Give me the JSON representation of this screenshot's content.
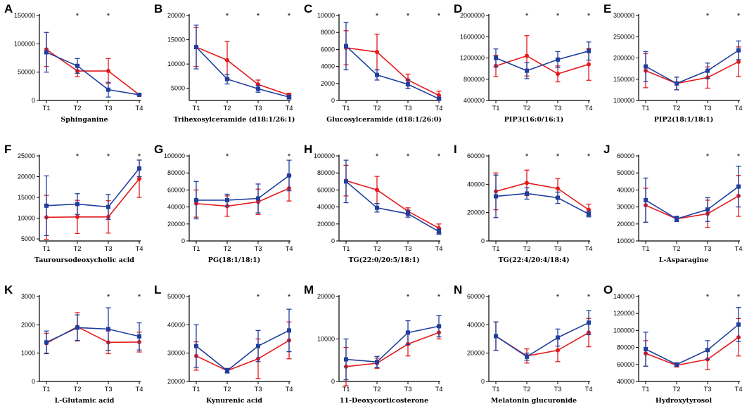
{
  "colors": {
    "red": "#e41a1c",
    "blue": "#1f3f9e"
  },
  "chart_data": [
    {
      "label": "A",
      "type": "line",
      "xlabel": "Sphinganine",
      "categories": [
        "T1",
        "T2",
        "T3",
        "T4"
      ],
      "yticks": [
        0,
        50000,
        100000,
        150000
      ],
      "ytick_labels": [
        "0",
        "50000",
        "100000",
        "150000"
      ],
      "ylim": [
        0,
        150000
      ],
      "stars": [
        false,
        true,
        true,
        false
      ],
      "series": [
        {
          "name": "red",
          "values": [
            90000,
            52000,
            52000,
            10000
          ],
          "err": [
            30000,
            10000,
            22000,
            1500
          ]
        },
        {
          "name": "blue",
          "values": [
            85000,
            61000,
            19000,
            10000
          ],
          "err": [
            35000,
            13000,
            13000,
            1500
          ]
        }
      ]
    },
    {
      "label": "B",
      "type": "line",
      "xlabel": "Trihexosylceramide (d18:1/26:1)",
      "categories": [
        "T1",
        "T2",
        "T3",
        "T4"
      ],
      "yticks": [
        5000,
        10000,
        15000,
        20000
      ],
      "ytick_labels": [
        "5000",
        "10000",
        "15000",
        "20000"
      ],
      "ylim": [
        2500,
        20000
      ],
      "stars": [
        false,
        true,
        true,
        true
      ],
      "series": [
        {
          "name": "red",
          "values": [
            13500,
            10800,
            5800,
            3600
          ],
          "err": [
            4000,
            3800,
            900,
            400
          ]
        },
        {
          "name": "blue",
          "values": [
            13500,
            6900,
            4900,
            3200
          ],
          "err": [
            4500,
            1000,
            700,
            400
          ]
        }
      ]
    },
    {
      "label": "C",
      "type": "line",
      "xlabel": "Glucosylceramide (d18:1/26:0)",
      "categories": [
        "T1",
        "T2",
        "T3",
        "T4"
      ],
      "yticks": [
        0,
        2000,
        4000,
        6000,
        8000,
        10000
      ],
      "ytick_labels": [
        "0",
        "2000",
        "4000",
        "6000",
        "8000",
        "10000"
      ],
      "ylim": [
        0,
        10000
      ],
      "stars": [
        false,
        true,
        true,
        true
      ],
      "series": [
        {
          "name": "red",
          "values": [
            6200,
            5700,
            2400,
            600
          ],
          "err": [
            2000,
            2100,
            700,
            500
          ]
        },
        {
          "name": "blue",
          "values": [
            6400,
            3000,
            1900,
            200
          ],
          "err": [
            2800,
            600,
            500,
            150
          ]
        }
      ]
    },
    {
      "label": "D",
      "type": "line",
      "xlabel": "PIP3(16:0/16:1)",
      "categories": [
        "T1",
        "T2",
        "T3",
        "T4"
      ],
      "yticks": [
        400000,
        800000,
        1200000,
        1600000,
        2000000
      ],
      "ytick_labels": [
        "400000",
        "800000",
        "1200000",
        "1600000",
        "2000000"
      ],
      "ylim": [
        400000,
        2000000
      ],
      "stars": [
        false,
        true,
        true,
        true
      ],
      "series": [
        {
          "name": "red",
          "values": [
            1050000,
            1240000,
            900000,
            1080000
          ],
          "err": [
            200000,
            380000,
            150000,
            300000
          ]
        },
        {
          "name": "blue",
          "values": [
            1200000,
            960000,
            1170000,
            1330000
          ],
          "err": [
            170000,
            150000,
            150000,
            170000
          ]
        }
      ]
    },
    {
      "label": "E",
      "type": "line",
      "xlabel": "PIP2(18:1/18:1)",
      "categories": [
        "T1",
        "T2",
        "T3",
        "T4"
      ],
      "yticks": [
        100000,
        150000,
        200000,
        250000,
        300000
      ],
      "ytick_labels": [
        "100000",
        "150000",
        "200000",
        "250000",
        "300000"
      ],
      "ylim": [
        100000,
        300000
      ],
      "stars": [
        false,
        false,
        true,
        true
      ],
      "series": [
        {
          "name": "red",
          "values": [
            170000,
            140000,
            154000,
            191000
          ],
          "err": [
            40000,
            15000,
            25000,
            35000
          ]
        },
        {
          "name": "blue",
          "values": [
            180000,
            140000,
            170000,
            218000
          ],
          "err": [
            35000,
            15000,
            18000,
            22000
          ]
        }
      ]
    },
    {
      "label": "F",
      "type": "line",
      "xlabel": "Tauroursodeoxycholic acid",
      "categories": [
        "T1",
        "T2",
        "T3",
        "T4"
      ],
      "yticks": [
        5000,
        10000,
        15000,
        20000,
        25000
      ],
      "ytick_labels": [
        "5000",
        "10000",
        "15000",
        "20000",
        "25000"
      ],
      "ylim": [
        4500,
        25000
      ],
      "stars": [
        false,
        true,
        true,
        true
      ],
      "series": [
        {
          "name": "red",
          "values": [
            10200,
            10300,
            10300,
            19500
          ],
          "err": [
            5300,
            4000,
            3900,
            4500
          ]
        },
        {
          "name": "blue",
          "values": [
            13000,
            13400,
            12700,
            22000
          ],
          "err": [
            7200,
            2500,
            3000,
            2000
          ]
        }
      ]
    },
    {
      "label": "G",
      "type": "line",
      "xlabel": "PG(18:1/18:1)",
      "categories": [
        "T1",
        "T2",
        "T3",
        "T4"
      ],
      "yticks": [
        0,
        20000,
        40000,
        60000,
        80000,
        100000
      ],
      "ytick_labels": [
        "0",
        "20000",
        "40000",
        "60000",
        "80000",
        "100000"
      ],
      "ylim": [
        0,
        100000
      ],
      "stars": [
        false,
        true,
        false,
        true
      ],
      "series": [
        {
          "name": "red",
          "values": [
            44000,
            41000,
            46000,
            62000
          ],
          "err": [
            16000,
            12000,
            15000,
            15000
          ]
        },
        {
          "name": "blue",
          "values": [
            48000,
            48000,
            50000,
            77000
          ],
          "err": [
            22000,
            7000,
            17000,
            18000
          ]
        }
      ]
    },
    {
      "label": "H",
      "type": "line",
      "xlabel": "TG(22:0/20:5/18:1)",
      "categories": [
        "T1",
        "T2",
        "T3",
        "T4"
      ],
      "yticks": [
        0,
        20000,
        40000,
        60000,
        80000,
        100000
      ],
      "ytick_labels": [
        "0",
        "20000",
        "40000",
        "60000",
        "80000",
        "100000"
      ],
      "ylim": [
        0,
        100000
      ],
      "stars": [
        false,
        true,
        true,
        true
      ],
      "series": [
        {
          "name": "red",
          "values": [
            71000,
            60000,
            35000,
            15000
          ],
          "err": [
            18000,
            16000,
            4000,
            5000
          ]
        },
        {
          "name": "blue",
          "values": [
            70000,
            39000,
            32000,
            11000
          ],
          "err": [
            25000,
            5000,
            4000,
            3000
          ]
        }
      ]
    },
    {
      "label": "I",
      "type": "line",
      "xlabel": "TG(22:4/20:4/18:4)",
      "categories": [
        "T1",
        "T2",
        "T3",
        "T4"
      ],
      "yticks": [
        0,
        20000,
        40000,
        60000
      ],
      "ytick_labels": [
        "0",
        "20000",
        "40000",
        "60000"
      ],
      "ylim": [
        0,
        60000
      ],
      "stars": [
        false,
        true,
        true,
        true
      ],
      "series": [
        {
          "name": "red",
          "values": [
            35000,
            41000,
            37000,
            22000
          ],
          "err": [
            13000,
            9000,
            7000,
            4000
          ]
        },
        {
          "name": "blue",
          "values": [
            31500,
            33500,
            30500,
            19000
          ],
          "err": [
            15000,
            4000,
            4000,
            2000
          ]
        }
      ]
    },
    {
      "label": "J",
      "type": "line",
      "xlabel": "L-Asparagine",
      "categories": [
        "T1",
        "T2",
        "T3",
        "T4"
      ],
      "yticks": [
        10000,
        20000,
        30000,
        40000,
        50000,
        60000
      ],
      "ytick_labels": [
        "10000",
        "20000",
        "30000",
        "40000",
        "50000",
        "60000"
      ],
      "ylim": [
        10000,
        60000
      ],
      "stars": [
        false,
        false,
        true,
        true
      ],
      "series": [
        {
          "name": "red",
          "values": [
            31000,
            23000,
            26000,
            36500
          ],
          "err": [
            10000,
            1500,
            8000,
            12000
          ]
        },
        {
          "name": "blue",
          "values": [
            34000,
            23000,
            28500,
            42000
          ],
          "err": [
            13000,
            1500,
            7000,
            12000
          ]
        }
      ]
    },
    {
      "label": "K",
      "type": "line",
      "xlabel": "L-Glutamic acid",
      "categories": [
        "T1",
        "T2",
        "T3",
        "T4"
      ],
      "yticks": [
        0,
        1000,
        2000,
        3000
      ],
      "ytick_labels": [
        "0",
        "1000",
        "2000",
        "3000"
      ],
      "ylim": [
        0,
        3000
      ],
      "stars": [
        false,
        false,
        true,
        true
      ],
      "series": [
        {
          "name": "red",
          "values": [
            1350,
            1930,
            1380,
            1390
          ],
          "err": [
            350,
            500,
            400,
            350
          ]
        },
        {
          "name": "blue",
          "values": [
            1380,
            1900,
            1850,
            1590
          ],
          "err": [
            400,
            450,
            750,
            480
          ]
        }
      ]
    },
    {
      "label": "L",
      "type": "line",
      "xlabel": "Kynurenic acid",
      "categories": [
        "T1",
        "T2",
        "T3",
        "T4"
      ],
      "yticks": [
        20000,
        30000,
        40000,
        50000
      ],
      "ytick_labels": [
        "20000",
        "30000",
        "40000",
        "50000"
      ],
      "ylim": [
        20000,
        50000
      ],
      "stars": [
        false,
        false,
        true,
        true
      ],
      "series": [
        {
          "name": "red",
          "values": [
            29000,
            23800,
            28000,
            34500
          ],
          "err": [
            5000,
            800,
            7000,
            6500
          ]
        },
        {
          "name": "blue",
          "values": [
            32500,
            23800,
            32500,
            38000
          ],
          "err": [
            7500,
            800,
            5500,
            7500
          ]
        }
      ]
    },
    {
      "label": "M",
      "type": "line",
      "xlabel": "11-Deoxycorticosterone",
      "categories": [
        "T1",
        "T2",
        "T3",
        "T4"
      ],
      "yticks": [
        0,
        10000,
        20000
      ],
      "ytick_labels": [
        "0",
        "10000",
        "20000"
      ],
      "ylim": [
        0,
        20000
      ],
      "stars": [
        false,
        false,
        true,
        true
      ],
      "series": [
        {
          "name": "red",
          "values": [
            3500,
            4300,
            8800,
            11500
          ],
          "err": [
            4500,
            1200,
            2800,
            1500
          ]
        },
        {
          "name": "blue",
          "values": [
            5200,
            4600,
            11500,
            13000
          ],
          "err": [
            4800,
            1300,
            2800,
            2500
          ]
        }
      ]
    },
    {
      "label": "N",
      "type": "line",
      "xlabel": "Melatonin glucuronide",
      "categories": [
        "T1",
        "T2",
        "T3",
        "T4"
      ],
      "yticks": [
        0,
        20000,
        40000,
        60000
      ],
      "ytick_labels": [
        "0",
        "20000",
        "40000",
        "60000"
      ],
      "ylim": [
        0,
        60000
      ],
      "stars": [
        false,
        false,
        true,
        true
      ],
      "series": [
        {
          "name": "red",
          "values": [
            32000,
            18000,
            22000,
            34500
          ],
          "err": [
            10000,
            5000,
            8000,
            10000
          ]
        },
        {
          "name": "blue",
          "values": [
            32000,
            17500,
            31000,
            41500
          ],
          "err": [
            10000,
            2500,
            6000,
            8500
          ]
        }
      ]
    },
    {
      "label": "O",
      "type": "line",
      "xlabel": "Hydroxytyrosol",
      "categories": [
        "T1",
        "T2",
        "T3",
        "T4"
      ],
      "yticks": [
        40000,
        60000,
        80000,
        100000,
        120000,
        140000
      ],
      "ytick_labels": [
        "40000",
        "60000",
        "80000",
        "100000",
        "120000",
        "140000"
      ],
      "ylim": [
        40000,
        140000
      ],
      "stars": [
        false,
        false,
        true,
        true
      ],
      "series": [
        {
          "name": "red",
          "values": [
            73000,
            59000,
            66000,
            92000
          ],
          "err": [
            15000,
            2000,
            12000,
            22000
          ]
        },
        {
          "name": "blue",
          "values": [
            78000,
            60000,
            77000,
            107000
          ],
          "err": [
            20000,
            2000,
            11000,
            20000
          ]
        }
      ]
    }
  ]
}
